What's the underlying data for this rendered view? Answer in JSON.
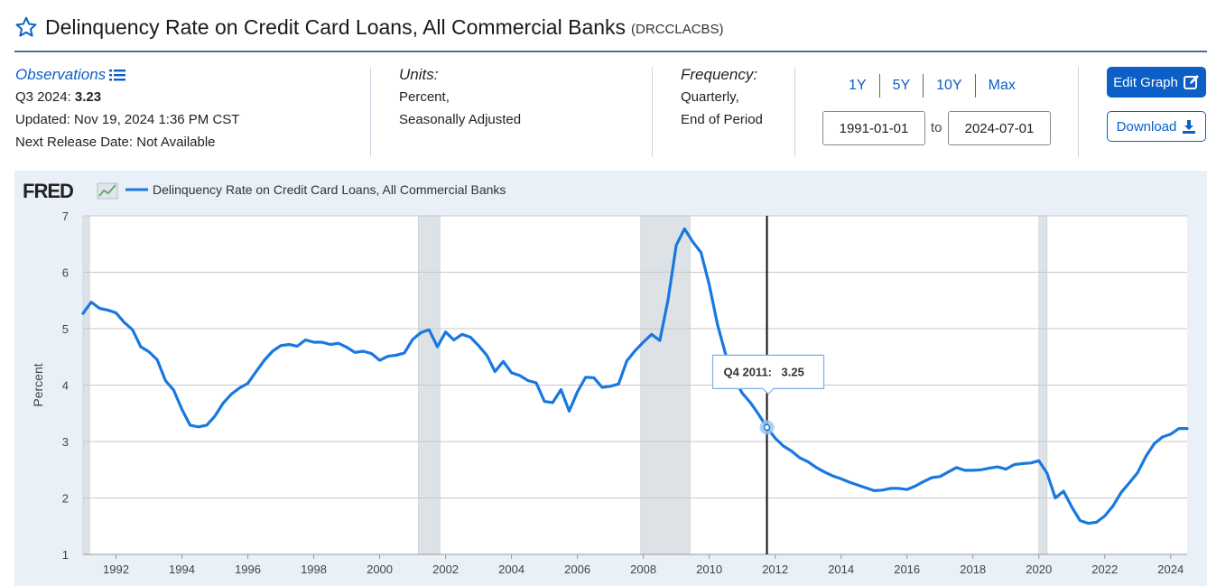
{
  "header": {
    "title": "Delinquency Rate on Credit Card Loans, All Commercial Banks",
    "series_id": "(DRCCLACBS)",
    "star_icon": "star-outline-icon"
  },
  "observations": {
    "label": "Observations",
    "list_icon": "list-icon",
    "latest_period": "Q3 2024:",
    "latest_value": "3.23",
    "updated": "Updated: Nov 19, 2024 1:36 PM CST",
    "next_release": "Next Release Date: Not Available"
  },
  "units": {
    "label": "Units:",
    "line1": "Percent,",
    "line2": "Seasonally Adjusted"
  },
  "frequency": {
    "label": "Frequency:",
    "line1": "Quarterly,",
    "line2": "End of Period"
  },
  "range": {
    "buttons": [
      "1Y",
      "5Y",
      "10Y",
      "Max"
    ],
    "start": "1991-01-01",
    "to_label": "to",
    "end": "2024-07-01"
  },
  "actions": {
    "edit_label": "Edit Graph",
    "edit_icon": "edit-icon",
    "download_label": "Download",
    "download_icon": "download-icon"
  },
  "colors": {
    "accent": "#0b5fc6",
    "series": "#1878e0",
    "recession": "#dde2e7",
    "panel": "#e9f0f7"
  },
  "chart_data": {
    "type": "line",
    "logo": "FRED",
    "legend": "Delinquency Rate on Credit Card Loans, All Commercial Banks",
    "ylabel": "Percent",
    "ylim": [
      1,
      7
    ],
    "xlim": [
      1991.0,
      2024.5
    ],
    "yticks": [
      1,
      2,
      3,
      4,
      5,
      6,
      7
    ],
    "xticks": [
      1992,
      1994,
      1996,
      1998,
      2000,
      2002,
      2004,
      2006,
      2008,
      2010,
      2012,
      2014,
      2016,
      2018,
      2020,
      2022,
      2024
    ],
    "grid": true,
    "recessions": [
      [
        1991.0,
        1991.2
      ],
      [
        2001.17,
        2001.83
      ],
      [
        2007.92,
        2009.42
      ],
      [
        2020.0,
        2020.25
      ]
    ],
    "tooltip": {
      "label": "Q4 2011:",
      "value": "3.25",
      "x": 2011.75,
      "y": 3.25
    },
    "series": [
      {
        "name": "Delinquency Rate on Credit Card Loans, All Commercial Banks",
        "x": [
          1991.0,
          1991.25,
          1991.5,
          1991.75,
          1992.0,
          1992.25,
          1992.5,
          1992.75,
          1993.0,
          1993.25,
          1993.5,
          1993.75,
          1994.0,
          1994.25,
          1994.5,
          1994.75,
          1995.0,
          1995.25,
          1995.5,
          1995.75,
          1996.0,
          1996.25,
          1996.5,
          1996.75,
          1997.0,
          1997.25,
          1997.5,
          1997.75,
          1998.0,
          1998.25,
          1998.5,
          1998.75,
          1999.0,
          1999.25,
          1999.5,
          1999.75,
          2000.0,
          2000.25,
          2000.5,
          2000.75,
          2001.0,
          2001.25,
          2001.5,
          2001.75,
          2002.0,
          2002.25,
          2002.5,
          2002.75,
          2003.0,
          2003.25,
          2003.5,
          2003.75,
          2004.0,
          2004.25,
          2004.5,
          2004.75,
          2005.0,
          2005.25,
          2005.5,
          2005.75,
          2006.0,
          2006.25,
          2006.5,
          2006.75,
          2007.0,
          2007.25,
          2007.5,
          2007.75,
          2008.0,
          2008.25,
          2008.5,
          2008.75,
          2009.0,
          2009.25,
          2009.5,
          2009.75,
          2010.0,
          2010.25,
          2010.5,
          2010.75,
          2011.0,
          2011.25,
          2011.5,
          2011.75,
          2012.0,
          2012.25,
          2012.5,
          2012.75,
          2013.0,
          2013.25,
          2013.5,
          2013.75,
          2014.0,
          2014.25,
          2014.5,
          2014.75,
          2015.0,
          2015.25,
          2015.5,
          2015.75,
          2016.0,
          2016.25,
          2016.5,
          2016.75,
          2017.0,
          2017.25,
          2017.5,
          2017.75,
          2018.0,
          2018.25,
          2018.5,
          2018.75,
          2019.0,
          2019.25,
          2019.5,
          2019.75,
          2020.0,
          2020.25,
          2020.5,
          2020.75,
          2021.0,
          2021.25,
          2021.5,
          2021.75,
          2022.0,
          2022.25,
          2022.5,
          2022.75,
          2023.0,
          2023.25,
          2023.5,
          2023.75,
          2024.0,
          2024.25,
          2024.5
        ],
        "values": [
          5.27,
          5.47,
          5.36,
          5.33,
          5.28,
          5.11,
          4.98,
          4.68,
          4.59,
          4.45,
          4.08,
          3.91,
          3.57,
          3.29,
          3.26,
          3.29,
          3.45,
          3.68,
          3.84,
          3.95,
          4.03,
          4.24,
          4.44,
          4.6,
          4.7,
          4.72,
          4.69,
          4.8,
          4.76,
          4.76,
          4.72,
          4.74,
          4.67,
          4.58,
          4.6,
          4.56,
          4.44,
          4.51,
          4.53,
          4.57,
          4.81,
          4.93,
          4.98,
          4.68,
          4.94,
          4.8,
          4.9,
          4.85,
          4.7,
          4.53,
          4.24,
          4.42,
          4.22,
          4.17,
          4.08,
          4.04,
          3.71,
          3.69,
          3.92,
          3.54,
          3.88,
          4.14,
          4.13,
          3.96,
          3.98,
          4.02,
          4.43,
          4.61,
          4.76,
          4.9,
          4.79,
          5.51,
          6.48,
          6.77,
          6.54,
          6.35,
          5.78,
          5.07,
          4.54,
          4.12,
          3.86,
          3.69,
          3.48,
          3.25,
          3.06,
          2.92,
          2.83,
          2.71,
          2.64,
          2.54,
          2.46,
          2.39,
          2.34,
          2.28,
          2.23,
          2.18,
          2.13,
          2.14,
          2.17,
          2.17,
          2.15,
          2.21,
          2.29,
          2.36,
          2.38,
          2.46,
          2.54,
          2.49,
          2.49,
          2.5,
          2.53,
          2.55,
          2.51,
          2.59,
          2.61,
          2.62,
          2.66,
          2.44,
          2.0,
          2.12,
          1.84,
          1.6,
          1.55,
          1.57,
          1.68,
          1.86,
          2.1,
          2.27,
          2.45,
          2.74,
          2.96,
          3.08,
          3.13,
          3.23,
          3.23
        ]
      }
    ]
  }
}
